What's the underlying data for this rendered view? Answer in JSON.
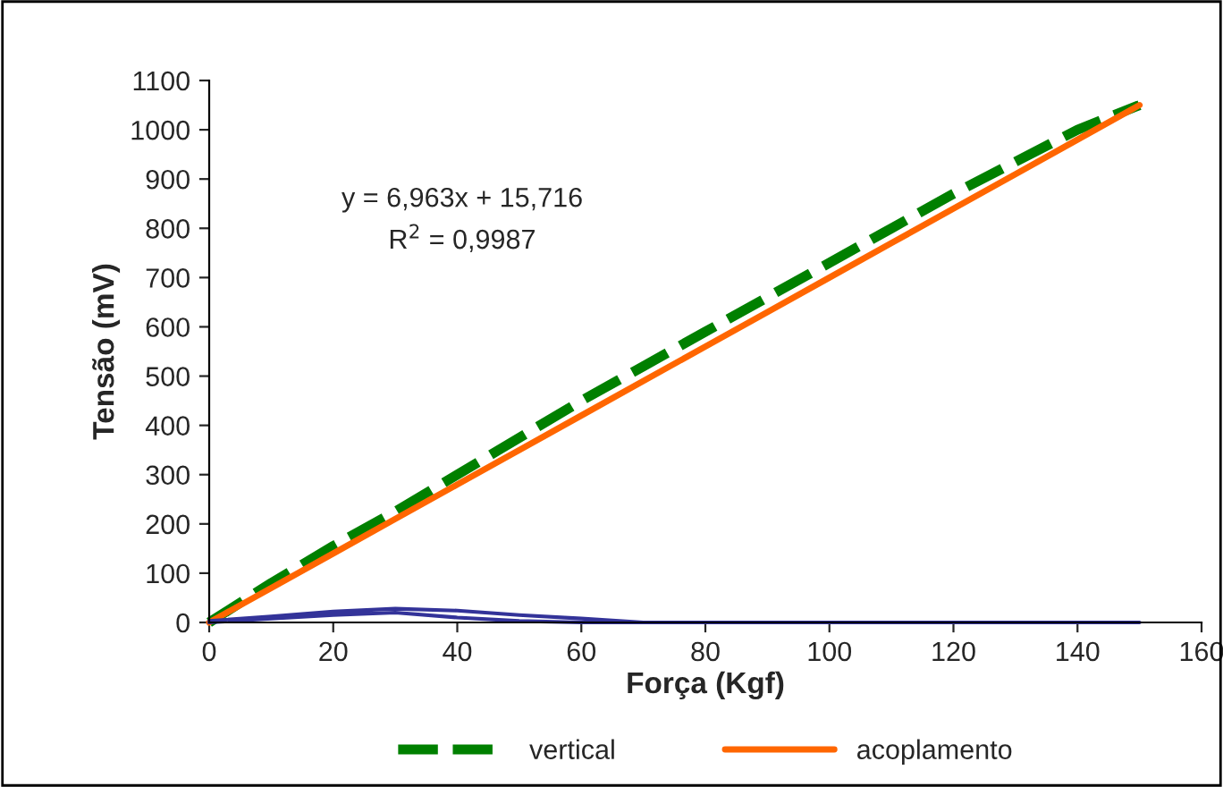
{
  "chart_data": {
    "type": "line",
    "xlabel": "Força (Kgf)",
    "ylabel": "Tensão (mV)",
    "xlim": [
      0,
      160
    ],
    "xticks": [
      0,
      20,
      40,
      60,
      80,
      100,
      120,
      140,
      160
    ],
    "ylim": [
      0,
      1100
    ],
    "yticks": [
      0,
      100,
      200,
      300,
      400,
      500,
      600,
      700,
      800,
      900,
      1000,
      1100
    ],
    "x": [
      0,
      10,
      20,
      30,
      40,
      50,
      60,
      70,
      80,
      90,
      100,
      110,
      120,
      130,
      140,
      150
    ],
    "series": [
      {
        "name": "vertical",
        "color": "#008000",
        "line_style": "dashed",
        "values": [
          0,
          80,
          155,
          225,
          300,
          375,
          450,
          520,
          590,
          660,
          730,
          800,
          870,
          935,
          1000,
          1050
        ]
      },
      {
        "name": "acoplamento",
        "color": "#ff6600",
        "line_style": "solid",
        "values": [
          0,
          70,
          140,
          210,
          280,
          350,
          420,
          490,
          560,
          630,
          700,
          770,
          840,
          910,
          980,
          1050
        ]
      },
      {
        "color": "#333399",
        "line_style": "solid",
        "x": [
          0,
          10,
          20,
          30,
          40,
          50,
          60,
          70,
          80,
          90,
          100,
          110,
          120,
          130,
          140,
          150,
          140,
          130,
          120,
          110,
          100,
          90,
          80,
          70,
          60,
          50,
          40,
          30,
          20,
          10,
          0
        ],
        "values": [
          0,
          8,
          15,
          20,
          10,
          3,
          0,
          0,
          0,
          0,
          0,
          0,
          0,
          0,
          0,
          0,
          0,
          0,
          0,
          0,
          0,
          0,
          0,
          0,
          8,
          15,
          24,
          28,
          22,
          12,
          3
        ]
      }
    ],
    "annotations": [
      "y = 6,963x + 15,716",
      "R$^{2}$ = 0,9987"
    ],
    "grid": false,
    "legend": "bottom",
    "marker": "none"
  }
}
